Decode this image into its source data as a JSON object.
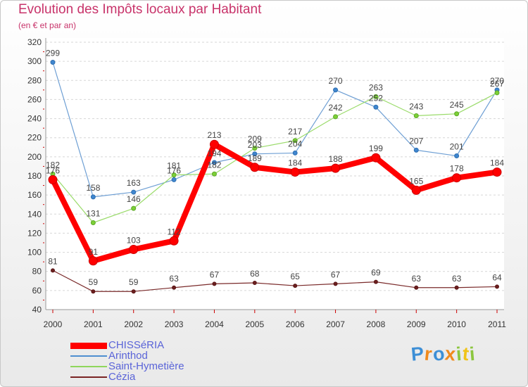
{
  "chart_data": {
    "type": "line",
    "title": "Evolution des Impôts locaux par Habitant",
    "subtitle": "(en € et par an)",
    "categories": [
      "2000",
      "2001",
      "2002",
      "2003",
      "2004",
      "2005",
      "2006",
      "2007",
      "2008",
      "2009",
      "2010",
      "2011"
    ],
    "yticks": [
      40,
      60,
      80,
      100,
      120,
      140,
      160,
      180,
      200,
      220,
      240,
      260,
      280,
      300,
      320
    ],
    "ylim": [
      40,
      320
    ],
    "grid": "horizontal-dashed",
    "legend_position": "bottom-left",
    "series": [
      {
        "name": "CHISSéRIA",
        "color": "#ff0000",
        "values": [
          176,
          91,
          103,
          112,
          213,
          189,
          184,
          188,
          199,
          165,
          178,
          184
        ]
      },
      {
        "name": "Arinthod",
        "color": "#4f8fd0",
        "values": [
          299,
          158,
          163,
          176,
          194,
          203,
          204,
          270,
          252,
          207,
          201,
          270
        ]
      },
      {
        "name": "Saint-Hymetière",
        "color": "#8fd65c",
        "values": [
          182,
          131,
          146,
          181,
          182,
          209,
          217,
          242,
          263,
          243,
          245,
          267
        ]
      },
      {
        "name": "Cézia",
        "color": "#7a2323",
        "values": [
          81,
          59,
          59,
          63,
          67,
          68,
          65,
          67,
          69,
          63,
          63,
          64
        ]
      }
    ]
  },
  "branding": {
    "logo_letters": [
      "P",
      "r",
      "o",
      "x",
      "i",
      "t",
      "i"
    ],
    "logo_colors": [
      "#3d8fd6",
      "#f08a1c",
      "#3d8fd6",
      "#f08a1c",
      "#8cc63f",
      "#f0c419",
      "#8cc63f"
    ]
  }
}
